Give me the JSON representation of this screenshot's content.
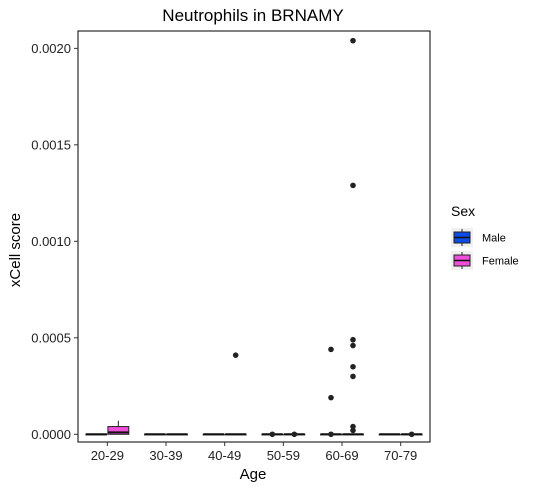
{
  "chart_data": {
    "type": "boxplot",
    "title": "Neutrophils in BRNAMY",
    "xlabel": "Age",
    "ylabel": "xCell score",
    "categories": [
      "20-29",
      "30-39",
      "40-49",
      "50-59",
      "60-69",
      "70-79"
    ],
    "ylim": [
      -4e-05,
      0.00209
    ],
    "yticks": [
      {
        "value": 0.0,
        "label": "0.0000"
      },
      {
        "value": 0.0005,
        "label": "0.0005"
      },
      {
        "value": 0.001,
        "label": "0.0010"
      },
      {
        "value": 0.0015,
        "label": "0.0015"
      },
      {
        "value": 0.002,
        "label": "0.0020"
      }
    ],
    "grid": false,
    "legend": {
      "title": "Sex",
      "placement": "right",
      "entries": [
        {
          "name": "Male",
          "color": "#0B4BE6"
        },
        {
          "name": "Female",
          "color": "#F04EDB"
        }
      ]
    },
    "series": [
      {
        "name": "Male",
        "color": "#0B4BE6",
        "boxes": [
          {
            "category": "20-29",
            "min": 0,
            "q1": 0,
            "median": 0,
            "q3": 0,
            "max": 0,
            "outliers": []
          },
          {
            "category": "30-39",
            "min": 0,
            "q1": 0,
            "median": 0,
            "q3": 0,
            "max": 0,
            "outliers": []
          },
          {
            "category": "40-49",
            "min": 0,
            "q1": 0,
            "median": 0,
            "q3": 0,
            "max": 0,
            "outliers": []
          },
          {
            "category": "50-59",
            "min": 0,
            "q1": 0,
            "median": 0,
            "q3": 0,
            "max": 0,
            "outliers": [
              0.0
            ]
          },
          {
            "category": "60-69",
            "min": 0,
            "q1": 0,
            "median": 0,
            "q3": 0,
            "max": 0,
            "outliers": [
              0.00044,
              0.00019,
              0.0
            ]
          },
          {
            "category": "70-79",
            "min": 0,
            "q1": 0,
            "median": 0,
            "q3": 0,
            "max": 0,
            "outliers": []
          }
        ]
      },
      {
        "name": "Female",
        "color": "#F04EDB",
        "boxes": [
          {
            "category": "20-29",
            "min": 0,
            "q1": 0,
            "median": 1e-05,
            "q3": 4e-05,
            "max": 7e-05,
            "outliers": []
          },
          {
            "category": "30-39",
            "min": 0,
            "q1": 0,
            "median": 0,
            "q3": 0,
            "max": 0,
            "outliers": []
          },
          {
            "category": "40-49",
            "min": 0,
            "q1": 0,
            "median": 0,
            "q3": 0,
            "max": 0,
            "outliers": [
              0.00041
            ]
          },
          {
            "category": "50-59",
            "min": 0,
            "q1": 0,
            "median": 0,
            "q3": 0,
            "max": 0,
            "outliers": [
              0.0
            ]
          },
          {
            "category": "60-69",
            "min": 0,
            "q1": 0,
            "median": 0,
            "q3": 0,
            "max": 0,
            "outliers": [
              0.00204,
              0.00129,
              0.00049,
              0.00046,
              0.00035,
              0.0003,
              4e-05,
              2e-05
            ]
          },
          {
            "category": "70-79",
            "min": 0,
            "q1": 0,
            "median": 0,
            "q3": 0,
            "max": 0,
            "outliers": [
              0.0
            ]
          }
        ]
      }
    ]
  }
}
